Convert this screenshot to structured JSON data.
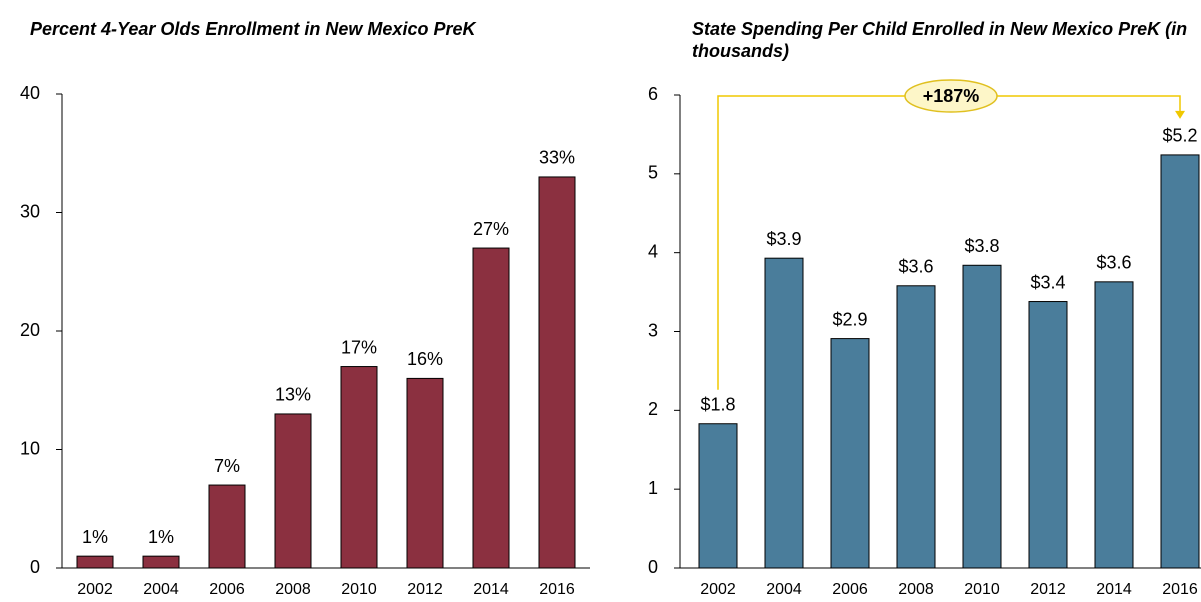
{
  "chart_data": [
    {
      "type": "bar",
      "title": "Percent 4-Year Olds Enrollment in New Mexico PreK",
      "categories": [
        "2002",
        "2004",
        "2006",
        "2008",
        "2010",
        "2012",
        "2014",
        "2016"
      ],
      "values": [
        1,
        1,
        7,
        13,
        17,
        16,
        27,
        33
      ],
      "value_labels": [
        "1%",
        "1%",
        "7%",
        "13%",
        "17%",
        "16%",
        "27%",
        "33%"
      ],
      "color": "#8b3040",
      "ylim": [
        0,
        40
      ],
      "yticks": [
        0,
        10,
        20,
        30,
        40
      ]
    },
    {
      "type": "bar",
      "title": "State Spending Per Child Enrolled in New Mexico PreK (in thousands)",
      "categories": [
        "2002",
        "2004",
        "2006",
        "2008",
        "2010",
        "2012",
        "2014",
        "2016"
      ],
      "values": [
        1.83,
        3.93,
        2.91,
        3.58,
        3.84,
        3.38,
        3.63,
        5.24
      ],
      "value_labels": [
        "$1.8",
        "$3.9",
        "$2.9",
        "$3.6",
        "$3.8",
        "$3.4",
        "$3.6",
        "$5.2"
      ],
      "color": "#4a7d9b",
      "ylim": [
        0,
        6
      ],
      "yticks": [
        0,
        1,
        2,
        3,
        4,
        5,
        6
      ],
      "annotation": "+187%"
    }
  ]
}
